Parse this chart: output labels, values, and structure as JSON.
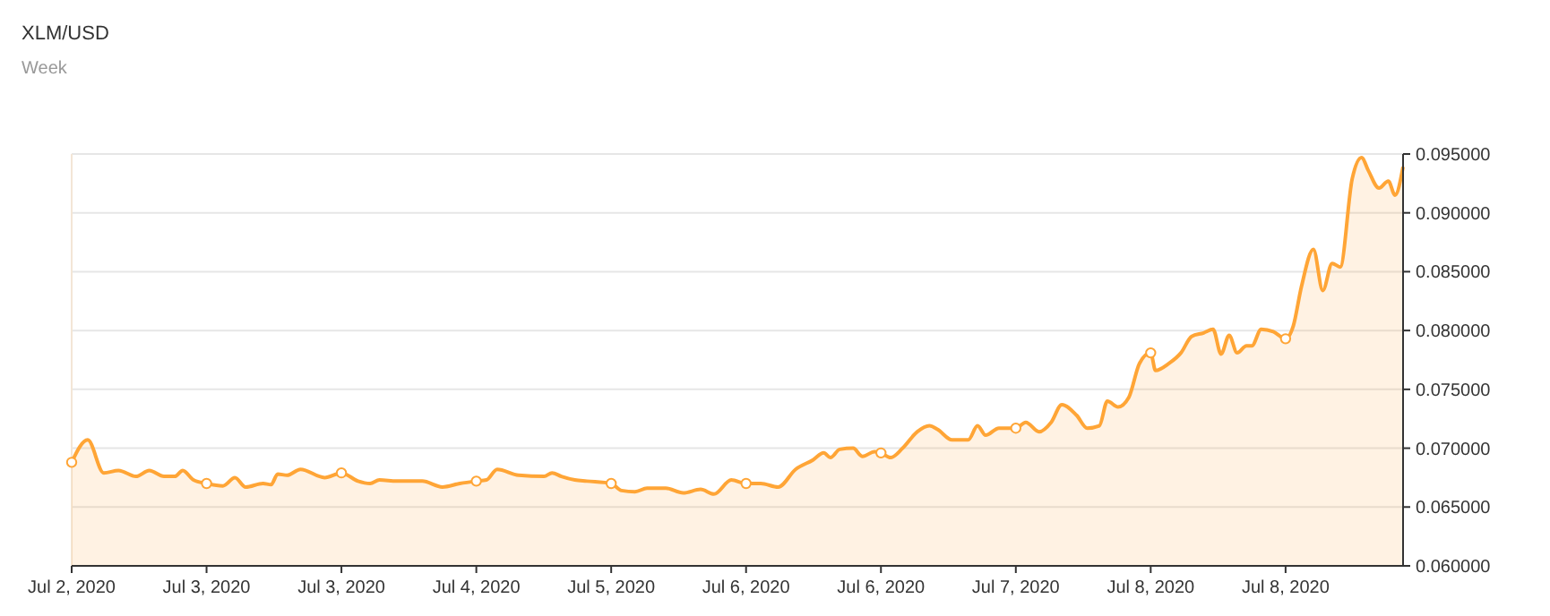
{
  "chart_data": {
    "type": "area",
    "title": "XLM/USD",
    "subtitle": "Week",
    "xlim": [
      "2020-07-02T13:00",
      "2020-07-09T10:50"
    ],
    "xticks": [
      {
        "value": "2020-07-02T13:00",
        "label": "Jul 2, 2020"
      },
      {
        "value": "2020-07-03T05:48",
        "label": "Jul 3, 2020"
      },
      {
        "value": "2020-07-03T22:36",
        "label": "Jul 3, 2020"
      },
      {
        "value": "2020-07-04T15:24",
        "label": "Jul 4, 2020"
      },
      {
        "value": "2020-07-05T08:12",
        "label": "Jul 5, 2020"
      },
      {
        "value": "2020-07-06T01:00",
        "label": "Jul 6, 2020"
      },
      {
        "value": "2020-07-06T17:48",
        "label": "Jul 6, 2020"
      },
      {
        "value": "2020-07-07T10:36",
        "label": "Jul 7, 2020"
      },
      {
        "value": "2020-07-08T03:24",
        "label": "Jul 8, 2020"
      },
      {
        "value": "2020-07-08T20:12",
        "label": "Jul 8, 2020"
      }
    ],
    "ylim": [
      0.06,
      0.095
    ],
    "yticks": [
      {
        "value": 0.06,
        "label": "0.060000"
      },
      {
        "value": 0.065,
        "label": "0.065000"
      },
      {
        "value": 0.07,
        "label": "0.070000"
      },
      {
        "value": 0.075,
        "label": "0.075000"
      },
      {
        "value": 0.08,
        "label": "0.080000"
      },
      {
        "value": 0.085,
        "label": "0.085000"
      },
      {
        "value": 0.09,
        "label": "0.090000"
      },
      {
        "value": 0.095,
        "label": "0.095000"
      }
    ],
    "grid": "y",
    "series": [
      {
        "color": "#ffa536",
        "x": [
          "2020-07-02T13:00",
          "2020-07-02T15:00",
          "2020-07-02T17:00",
          "2020-07-02T18:50",
          "2020-07-02T21:00",
          "2020-07-02T22:40",
          "2020-07-03T00:30",
          "2020-07-03T01:50",
          "2020-07-03T02:50",
          "2020-07-03T04:10",
          "2020-07-03T05:48",
          "2020-07-03T07:50",
          "2020-07-03T09:20",
          "2020-07-03T10:40",
          "2020-07-03T12:50",
          "2020-07-03T13:50",
          "2020-07-03T14:40",
          "2020-07-03T15:50",
          "2020-07-03T17:30",
          "2020-07-03T20:30",
          "2020-07-03T22:36",
          "2020-07-04T00:40",
          "2020-07-04T02:10",
          "2020-07-04T03:20",
          "2020-07-04T05:30",
          "2020-07-04T08:40",
          "2020-07-04T11:10",
          "2020-07-04T13:20",
          "2020-07-04T15:24",
          "2020-07-04T16:40",
          "2020-07-04T18:00",
          "2020-07-04T20:40",
          "2020-07-04T23:50",
          "2020-07-05T00:50",
          "2020-07-05T02:00",
          "2020-07-05T03:40",
          "2020-07-05T05:10",
          "2020-07-05T08:12",
          "2020-07-05T09:30",
          "2020-07-05T11:10",
          "2020-07-05T12:40",
          "2020-07-05T15:00",
          "2020-07-05T17:10",
          "2020-07-05T19:20",
          "2020-07-05T21:00",
          "2020-07-05T23:10",
          "2020-07-06T01:00",
          "2020-07-06T02:50",
          "2020-07-06T05:00",
          "2020-07-06T07:10",
          "2020-07-06T09:20",
          "2020-07-06T10:40",
          "2020-07-06T11:30",
          "2020-07-06T12:40",
          "2020-07-06T14:20",
          "2020-07-06T15:30",
          "2020-07-06T17:00",
          "2020-07-06T17:48",
          "2020-07-06T19:00",
          "2020-07-06T20:30",
          "2020-07-06T22:20",
          "2020-07-06T23:50",
          "2020-07-07T00:50",
          "2020-07-07T02:40",
          "2020-07-07T04:40",
          "2020-07-07T05:50",
          "2020-07-07T06:50",
          "2020-07-07T08:30",
          "2020-07-07T10:36",
          "2020-07-07T11:50",
          "2020-07-07T13:30",
          "2020-07-07T15:00",
          "2020-07-07T16:20",
          "2020-07-07T18:10",
          "2020-07-07T19:30",
          "2020-07-07T21:00",
          "2020-07-07T22:00",
          "2020-07-07T23:20",
          "2020-07-08T00:40",
          "2020-07-08T02:00",
          "2020-07-08T03:24",
          "2020-07-08T04:00",
          "2020-07-08T05:40",
          "2020-07-08T07:10",
          "2020-07-08T08:30",
          "2020-07-08T10:00",
          "2020-07-08T11:10",
          "2020-07-08T12:10",
          "2020-07-08T13:10",
          "2020-07-08T14:10",
          "2020-07-08T15:20",
          "2020-07-08T16:00",
          "2020-07-08T17:10",
          "2020-07-08T18:40",
          "2020-07-08T20:12",
          "2020-07-08T21:10",
          "2020-07-08T22:10",
          "2020-07-08T23:40",
          "2020-07-09T00:50",
          "2020-07-09T02:00",
          "2020-07-09T03:00",
          "2020-07-09T04:30",
          "2020-07-09T05:40",
          "2020-07-09T06:30",
          "2020-07-09T07:50",
          "2020-07-09T09:00",
          "2020-07-09T09:50",
          "2020-07-09T10:50"
        ],
        "values": [
          0.0688,
          0.0707,
          0.0679,
          0.0681,
          0.0676,
          0.0681,
          0.0676,
          0.0676,
          0.0681,
          0.0673,
          0.067,
          0.0668,
          0.0675,
          0.0667,
          0.067,
          0.0669,
          0.0678,
          0.0677,
          0.0682,
          0.0675,
          0.0679,
          0.0672,
          0.067,
          0.0673,
          0.0672,
          0.0672,
          0.0667,
          0.067,
          0.0672,
          0.0673,
          0.0682,
          0.0677,
          0.0676,
          0.0679,
          0.0676,
          0.0673,
          0.0672,
          0.067,
          0.0664,
          0.0663,
          0.0666,
          0.0666,
          0.0662,
          0.0665,
          0.0661,
          0.0673,
          0.067,
          0.067,
          0.0667,
          0.0682,
          0.069,
          0.0696,
          0.0692,
          0.0699,
          0.07,
          0.0693,
          0.0697,
          0.0696,
          0.0692,
          0.07,
          0.0714,
          0.0719,
          0.0716,
          0.0707,
          0.0707,
          0.0719,
          0.0711,
          0.0717,
          0.0717,
          0.0722,
          0.0714,
          0.0722,
          0.0737,
          0.0728,
          0.0717,
          0.0719,
          0.074,
          0.0735,
          0.0743,
          0.0772,
          0.0781,
          0.0766,
          0.0772,
          0.0781,
          0.0795,
          0.0798,
          0.0801,
          0.078,
          0.0796,
          0.0781,
          0.0787,
          0.0787,
          0.0801,
          0.0799,
          0.0793,
          0.0804,
          0.0837,
          0.0869,
          0.0834,
          0.0857,
          0.0854,
          0.0929,
          0.0947,
          0.0936,
          0.0921,
          0.0927,
          0.0915,
          0.0939
        ]
      },
      {
        "type": "scatter",
        "color": "#ffa536",
        "marker": "circle",
        "x": [
          "2020-07-02T13:00",
          "2020-07-03T05:48",
          "2020-07-03T22:36",
          "2020-07-04T15:24",
          "2020-07-05T08:12",
          "2020-07-06T01:00",
          "2020-07-06T17:48",
          "2020-07-07T10:36",
          "2020-07-08T03:24",
          "2020-07-08T20:12"
        ],
        "values": [
          0.0688,
          0.067,
          0.0679,
          0.0672,
          0.067,
          0.067,
          0.0696,
          0.0717,
          0.0781,
          0.0793
        ]
      }
    ]
  }
}
